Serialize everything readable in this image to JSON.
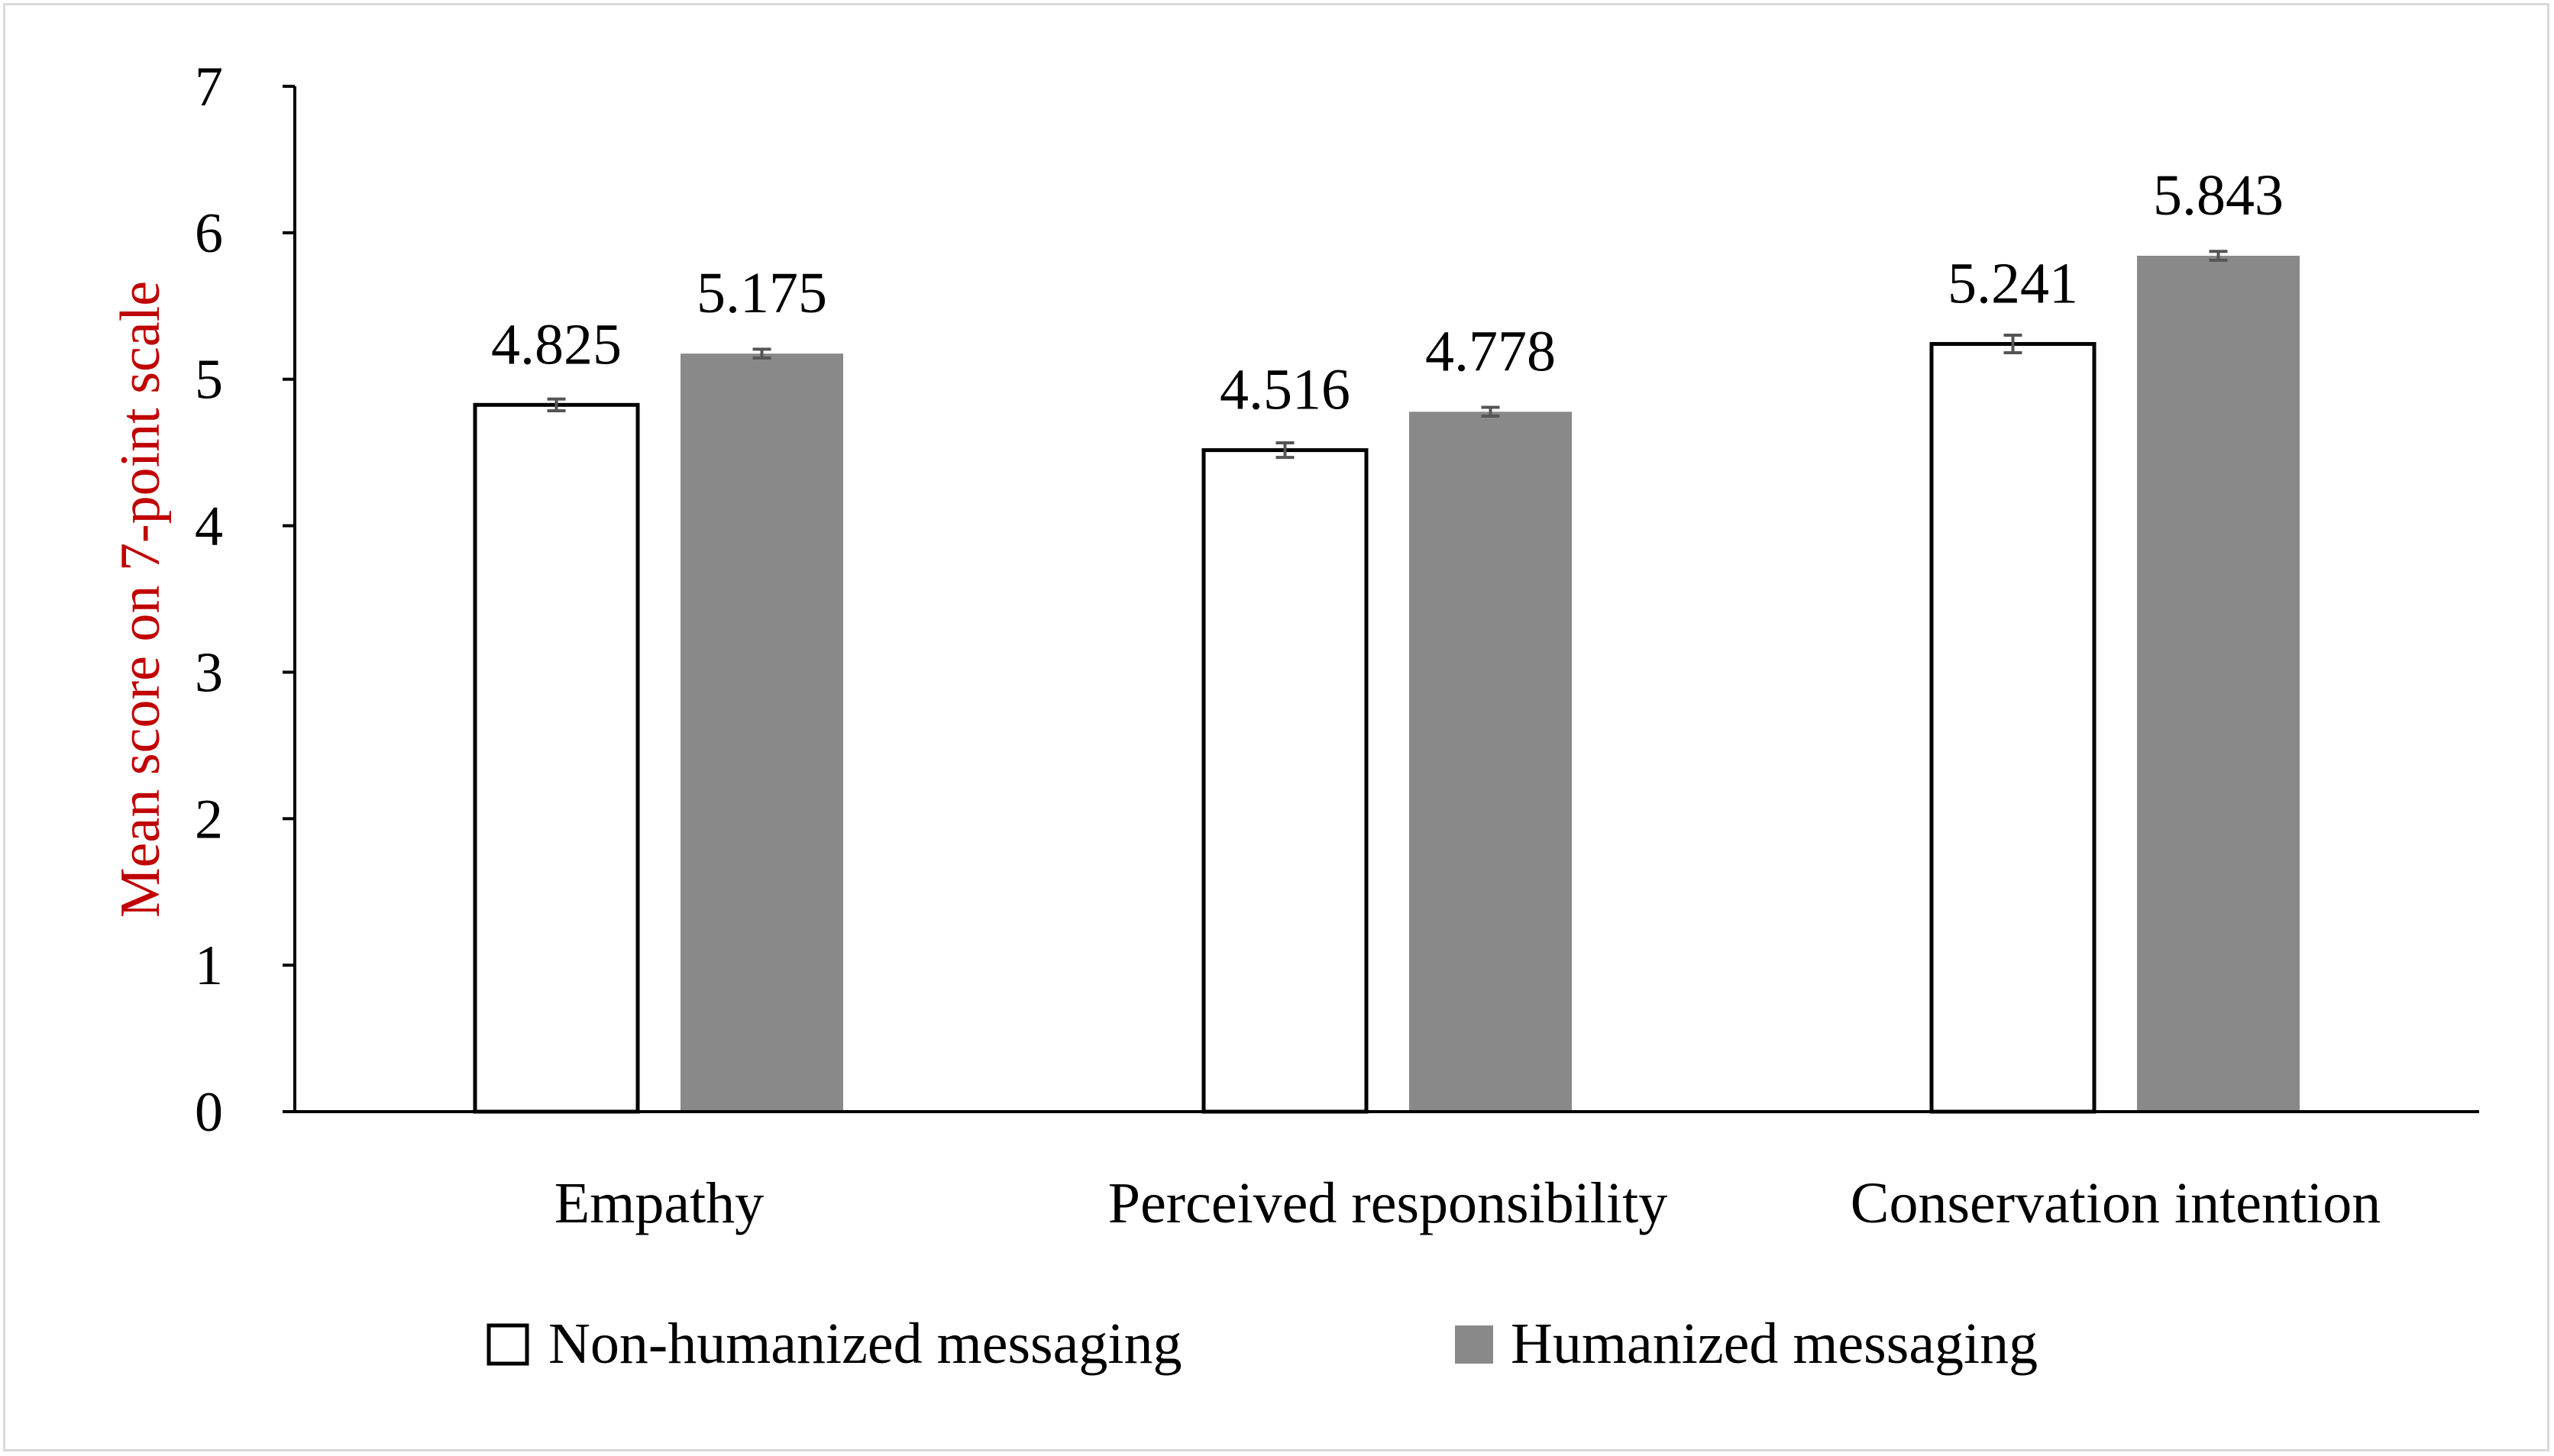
{
  "chart_data": {
    "type": "bar",
    "title": "",
    "xlabel": "",
    "ylabel": "Mean score on 7-point scale",
    "ylim": [
      0,
      7
    ],
    "yticks": [
      "0",
      "1",
      "2",
      "3",
      "4",
      "5",
      "6",
      "7"
    ],
    "categories": [
      "Empathy",
      "Perceived responsibility",
      "Conservation intention"
    ],
    "series": [
      {
        "name": "Non-humanized messaging",
        "values": [
          4.825,
          4.516,
          5.241
        ],
        "labels": [
          "4.825",
          "4.516",
          "5.241"
        ],
        "errors": [
          0.04,
          0.05,
          0.06
        ]
      },
      {
        "name": "Humanized messaging",
        "values": [
          5.175,
          4.778,
          5.843
        ],
        "labels": [
          "5.175",
          "4.778",
          "5.843"
        ],
        "errors": [
          0.03,
          0.03,
          0.03
        ]
      }
    ],
    "legend_position": "bottom",
    "grid": false,
    "colors": {
      "non_humanized_fill": "#ffffff",
      "non_humanized_stroke": "#000000",
      "humanized_fill": "#898989",
      "error_bar": "#555555",
      "ylabel": "#c00000",
      "axis": "#000000"
    }
  }
}
